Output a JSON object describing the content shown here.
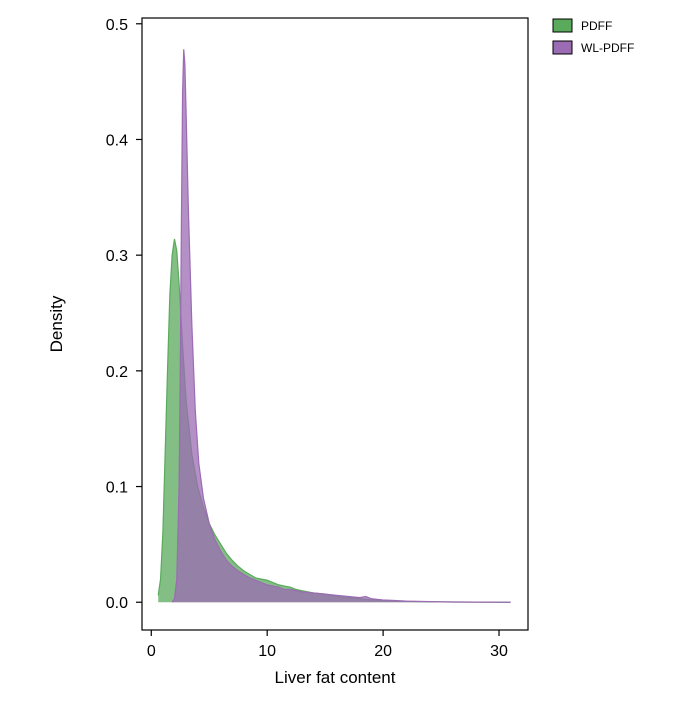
{
  "chart_data": {
    "type": "area",
    "xlabel": "Liver fat content",
    "ylabel": "Density",
    "xlim": [
      -0.8,
      32.5
    ],
    "ylim": [
      -0.024,
      0.505
    ],
    "xticks": [
      0,
      10,
      20,
      30
    ],
    "yticks": [
      0.0,
      0.1,
      0.2,
      0.3,
      0.4,
      0.5
    ],
    "ytick_labels": [
      "0.0",
      "0.1",
      "0.2",
      "0.3",
      "0.4",
      "0.5"
    ],
    "grid": false,
    "legend_position": "top-right",
    "series": [
      {
        "name": "PDFF",
        "color": "#5aaa5c",
        "points": [
          [
            0.6,
            0.006
          ],
          [
            0.8,
            0.02
          ],
          [
            1.0,
            0.06
          ],
          [
            1.2,
            0.13
          ],
          [
            1.4,
            0.2
          ],
          [
            1.6,
            0.265
          ],
          [
            1.8,
            0.3
          ],
          [
            2.0,
            0.314
          ],
          [
            2.2,
            0.304
          ],
          [
            2.4,
            0.275
          ],
          [
            2.7,
            0.222
          ],
          [
            3.0,
            0.175
          ],
          [
            3.5,
            0.128
          ],
          [
            4.0,
            0.1
          ],
          [
            4.5,
            0.082
          ],
          [
            5.0,
            0.068
          ],
          [
            5.5,
            0.058
          ],
          [
            6.0,
            0.05
          ],
          [
            6.5,
            0.042
          ],
          [
            7.0,
            0.036
          ],
          [
            7.5,
            0.031
          ],
          [
            8.0,
            0.027
          ],
          [
            8.5,
            0.024
          ],
          [
            9.0,
            0.021
          ],
          [
            9.5,
            0.02
          ],
          [
            10.0,
            0.019
          ],
          [
            10.5,
            0.017
          ],
          [
            11.0,
            0.015
          ],
          [
            11.5,
            0.014
          ],
          [
            12.0,
            0.013
          ],
          [
            12.5,
            0.011
          ],
          [
            13.0,
            0.01
          ],
          [
            13.5,
            0.009
          ],
          [
            14.0,
            0.008
          ],
          [
            15.0,
            0.007
          ],
          [
            16.0,
            0.005
          ],
          [
            17.0,
            0.004
          ],
          [
            18.0,
            0.003
          ],
          [
            19.0,
            0.002
          ],
          [
            20.0,
            0.0015
          ],
          [
            21.0,
            0.001
          ],
          [
            22.0,
            0.0007
          ],
          [
            24.0,
            0.0004
          ],
          [
            26.0,
            0.0002
          ],
          [
            28.0,
            0.0001
          ],
          [
            31.0,
            0.0
          ]
        ]
      },
      {
        "name": "WL-PDFF",
        "color": "#9b6bb3",
        "points": [
          [
            1.8,
            0.0
          ],
          [
            2.0,
            0.003
          ],
          [
            2.2,
            0.02
          ],
          [
            2.4,
            0.1
          ],
          [
            2.5,
            0.2
          ],
          [
            2.6,
            0.33
          ],
          [
            2.7,
            0.44
          ],
          [
            2.8,
            0.478
          ],
          [
            2.9,
            0.465
          ],
          [
            3.0,
            0.425
          ],
          [
            3.2,
            0.34
          ],
          [
            3.5,
            0.24
          ],
          [
            3.8,
            0.165
          ],
          [
            4.1,
            0.12
          ],
          [
            4.5,
            0.09
          ],
          [
            5.0,
            0.068
          ],
          [
            5.5,
            0.054
          ],
          [
            6.0,
            0.044
          ],
          [
            6.5,
            0.036
          ],
          [
            7.0,
            0.031
          ],
          [
            7.5,
            0.027
          ],
          [
            8.0,
            0.024
          ],
          [
            8.5,
            0.021
          ],
          [
            9.0,
            0.019
          ],
          [
            9.5,
            0.017
          ],
          [
            10.0,
            0.015
          ],
          [
            10.5,
            0.014
          ],
          [
            11.0,
            0.013
          ],
          [
            11.5,
            0.011
          ],
          [
            12.0,
            0.011
          ],
          [
            12.5,
            0.01
          ],
          [
            13.0,
            0.009
          ],
          [
            14.0,
            0.008
          ],
          [
            15.0,
            0.007
          ],
          [
            16.0,
            0.006
          ],
          [
            17.0,
            0.005
          ],
          [
            18.0,
            0.004
          ],
          [
            18.5,
            0.005
          ],
          [
            19.0,
            0.003
          ],
          [
            20.0,
            0.002
          ],
          [
            21.0,
            0.0015
          ],
          [
            22.0,
            0.001
          ],
          [
            24.0,
            0.0005
          ],
          [
            26.0,
            0.0002
          ],
          [
            28.0,
            0.0001
          ],
          [
            31.0,
            0.0
          ]
        ]
      }
    ]
  }
}
